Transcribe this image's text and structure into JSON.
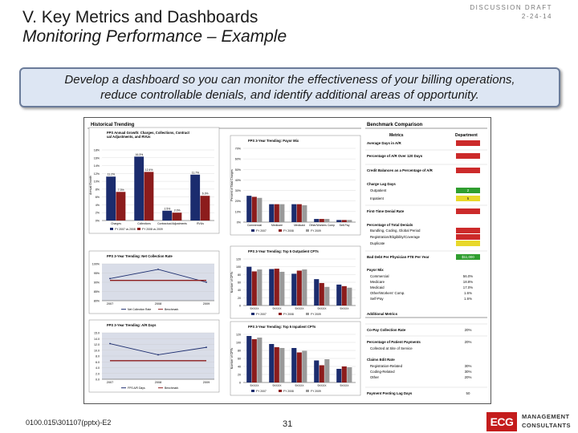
{
  "slide": {
    "title_line1": "V.  Key Metrics and Dashboards",
    "title_line2": "Monitoring Performance – Example",
    "draft_label": "DISCUSSION DRAFT",
    "draft_date": "2-24-14",
    "callout_line1": "Develop a dashboard so you can monitor the effectiveness of your billing operations,",
    "callout_line2": "reduce controllable denials, and identify additional areas of opportunity.",
    "footer_code": "0100.015\\301107(pptx)-E2",
    "page_number": "31",
    "logo_letters": "ECG",
    "logo_word1": "MANAGEMENT",
    "logo_word2": "CONSULTANTS"
  },
  "dashboard": {
    "historical_heading": "Historical Trending",
    "benchmark_heading": "Benchmark Comparison",
    "metrics_col": "Metrics",
    "department_col": "Department",
    "colors": {
      "red": "#cc2a2a",
      "green": "#2f9e2f",
      "yellow": "#e8d82a",
      "navy": "#1b2c6e",
      "maroon": "#8c1c1c",
      "grey": "#9a9a9a"
    }
  },
  "benchmark": {
    "rows": [
      {
        "metric": "Average Days in A/R",
        "value": "",
        "status": "red"
      },
      {
        "metric": "Percentage of A/R Over 120 Days",
        "value": "",
        "status": "red"
      },
      {
        "metric": "Credit Balances as a Percentage of A/R",
        "value": "",
        "status": "red"
      },
      {
        "metric": "Charge Lag Days",
        "value": "",
        "status": "none"
      },
      {
        "metric": "Outpatient",
        "value": "2",
        "status": "green"
      },
      {
        "metric": "Inpatient",
        "value": "5",
        "status": "yellow"
      },
      {
        "metric": "First-Time Denial Rate",
        "value": "",
        "status": "red"
      },
      {
        "metric": "Percentage of Total Denials",
        "value": "",
        "status": "none"
      },
      {
        "metric": "Bundling, Coding, Global Period",
        "value": "",
        "status": "red"
      },
      {
        "metric": "Registration/Eligibility/Coverage",
        "value": "",
        "status": "red"
      },
      {
        "metric": "Duplicate",
        "value": "",
        "status": "yellow"
      },
      {
        "metric": "Bad Debt Per Physician FTE Per Year",
        "value": "$11,000",
        "status": "green"
      },
      {
        "metric": "Payor Mix",
        "value": "",
        "status": "none"
      },
      {
        "metric": "Commercial",
        "value": "56.0%",
        "status": "none"
      },
      {
        "metric": "Medicare",
        "value": "18.8%",
        "status": "none"
      },
      {
        "metric": "Medicaid",
        "value": "17.0%",
        "status": "none"
      },
      {
        "metric": "Other/Workers' Comp.",
        "value": "1.6%",
        "status": "none"
      },
      {
        "metric": "Self-Pay",
        "value": "1.6%",
        "status": "none"
      },
      {
        "metric": "Additional Metrics",
        "value": "",
        "status": "none"
      },
      {
        "metric": "Co-Pay Collection Rate",
        "value": "20%",
        "status": "none"
      },
      {
        "metric": "Percentage of Patient Payments",
        "value": "20%",
        "status": "none"
      },
      {
        "metric": "Collected at Site of Service",
        "value": "",
        "status": "none"
      },
      {
        "metric": "Claims Edit Rate",
        "value": "",
        "status": "none"
      },
      {
        "metric": "Registration-Related",
        "value": "30%",
        "status": "none"
      },
      {
        "metric": "Coding-Related",
        "value": "30%",
        "status": "none"
      },
      {
        "metric": "Other",
        "value": "20%",
        "status": "none"
      },
      {
        "metric": "Payment Posting Lag Days",
        "value": "50",
        "status": "none"
      }
    ]
  },
  "chart_data": [
    {
      "type": "bar",
      "title": "FPS Annual Growth: Charges, Collections, Contractual Adjustments, and RVUs",
      "categories": [
        "Charges",
        "Collections",
        "Contractual Adjustments",
        "RVUs"
      ],
      "series": [
        {
          "name": "FY 2007 vs 2008",
          "values": [
            11.2,
            16.3,
            2.5,
            11.7
          ]
        },
        {
          "name": "FY 2008 vs 2009",
          "values": [
            7.3,
            12.4,
            2.0,
            6.3
          ]
        }
      ],
      "ylim": [
        0,
        18
      ],
      "yticks": [
        "0%",
        "2%",
        "4%",
        "6%",
        "8%",
        "10%",
        "12%",
        "14%",
        "16%",
        "18%"
      ],
      "ylabel": "Annual Growth"
    },
    {
      "type": "bar",
      "title": "FPS 3-Year Trending: Payor Mix",
      "categories": [
        "Commercial",
        "Medicare",
        "Medicaid",
        "Other/Workers Comp",
        "Self-Pay"
      ],
      "series": [
        {
          "name": "FY 2007",
          "values": [
            25,
            17,
            17,
            3,
            2
          ]
        },
        {
          "name": "FY 2008",
          "values": [
            24,
            17,
            17,
            3,
            2
          ]
        },
        {
          "name": "FY 2009",
          "values": [
            23,
            17,
            16,
            3,
            2
          ]
        }
      ],
      "ylim": [
        0,
        70
      ],
      "yticks": [
        "0%",
        "10%",
        "20%",
        "30%",
        "40%",
        "50%",
        "60%",
        "70%"
      ],
      "ylabel": "Percent of Total Charges"
    },
    {
      "type": "line",
      "title": "FPS 3-Year Trending: Net Collection Rate",
      "x": [
        "2007",
        "2008",
        "2009"
      ],
      "series": [
        {
          "name": "Net Collection Rate",
          "values": [
            92,
            97,
            90
          ]
        },
        {
          "name": "Benchmark",
          "values": [
            91,
            91,
            91
          ]
        }
      ],
      "ylim": [
        80,
        100
      ],
      "yticks": [
        "80%",
        "85%",
        "90%",
        "95%",
        "100%"
      ]
    },
    {
      "type": "bar",
      "title": "FPS 3-Year Trending: Top 5 Outpatient CPTs",
      "categories": [
        "9XXXX",
        "9XXXX",
        "9XXXX",
        "9XXXX",
        "9XXXX"
      ],
      "series": [
        {
          "name": "FY 2007",
          "values": [
            100,
            94,
            82,
            68,
            54
          ]
        },
        {
          "name": "FY 2008",
          "values": [
            88,
            95,
            90,
            58,
            50
          ]
        },
        {
          "name": "FY 2009",
          "values": [
            93,
            87,
            93,
            48,
            46
          ]
        }
      ],
      "ylim": [
        0,
        120
      ],
      "yticks": [
        "0",
        "20",
        "40",
        "60",
        "80",
        "100",
        "120"
      ],
      "ylabel": "Number of CPTs"
    },
    {
      "type": "line",
      "title": "FPS 3-Year Trending: A/R Days",
      "x": [
        "2007",
        "2008",
        "2009"
      ],
      "series": [
        {
          "name": "FPS A/R Days",
          "values": [
            11.5,
            7.9,
            10.3
          ]
        },
        {
          "name": "Benchmark",
          "values": [
            6.0,
            6.0,
            6.0
          ]
        }
      ],
      "ylim": [
        0,
        15
      ],
      "yticks": [
        "0.0",
        "2.0",
        "4.0",
        "6.0",
        "8.0",
        "10.0",
        "12.0",
        "14.0",
        "15.0"
      ]
    },
    {
      "type": "bar",
      "title": "FPS 3-Year Trending: Top 5 Inpatient CPTs",
      "categories": [
        "9XXXX",
        "9XXXX",
        "9XXXX",
        "9XXXX",
        "9XXXX"
      ],
      "series": [
        {
          "name": "FY 2007",
          "values": [
            116,
            96,
            86,
            55,
            34
          ]
        },
        {
          "name": "FY 2008",
          "values": [
            108,
            88,
            75,
            43,
            40
          ]
        },
        {
          "name": "FY 2009",
          "values": [
            112,
            86,
            79,
            58,
            38
          ]
        }
      ],
      "ylim": [
        0,
        120
      ],
      "yticks": [
        "0",
        "20",
        "40",
        "60",
        "80",
        "100",
        "120"
      ],
      "ylabel": "Number of CPTs"
    }
  ]
}
